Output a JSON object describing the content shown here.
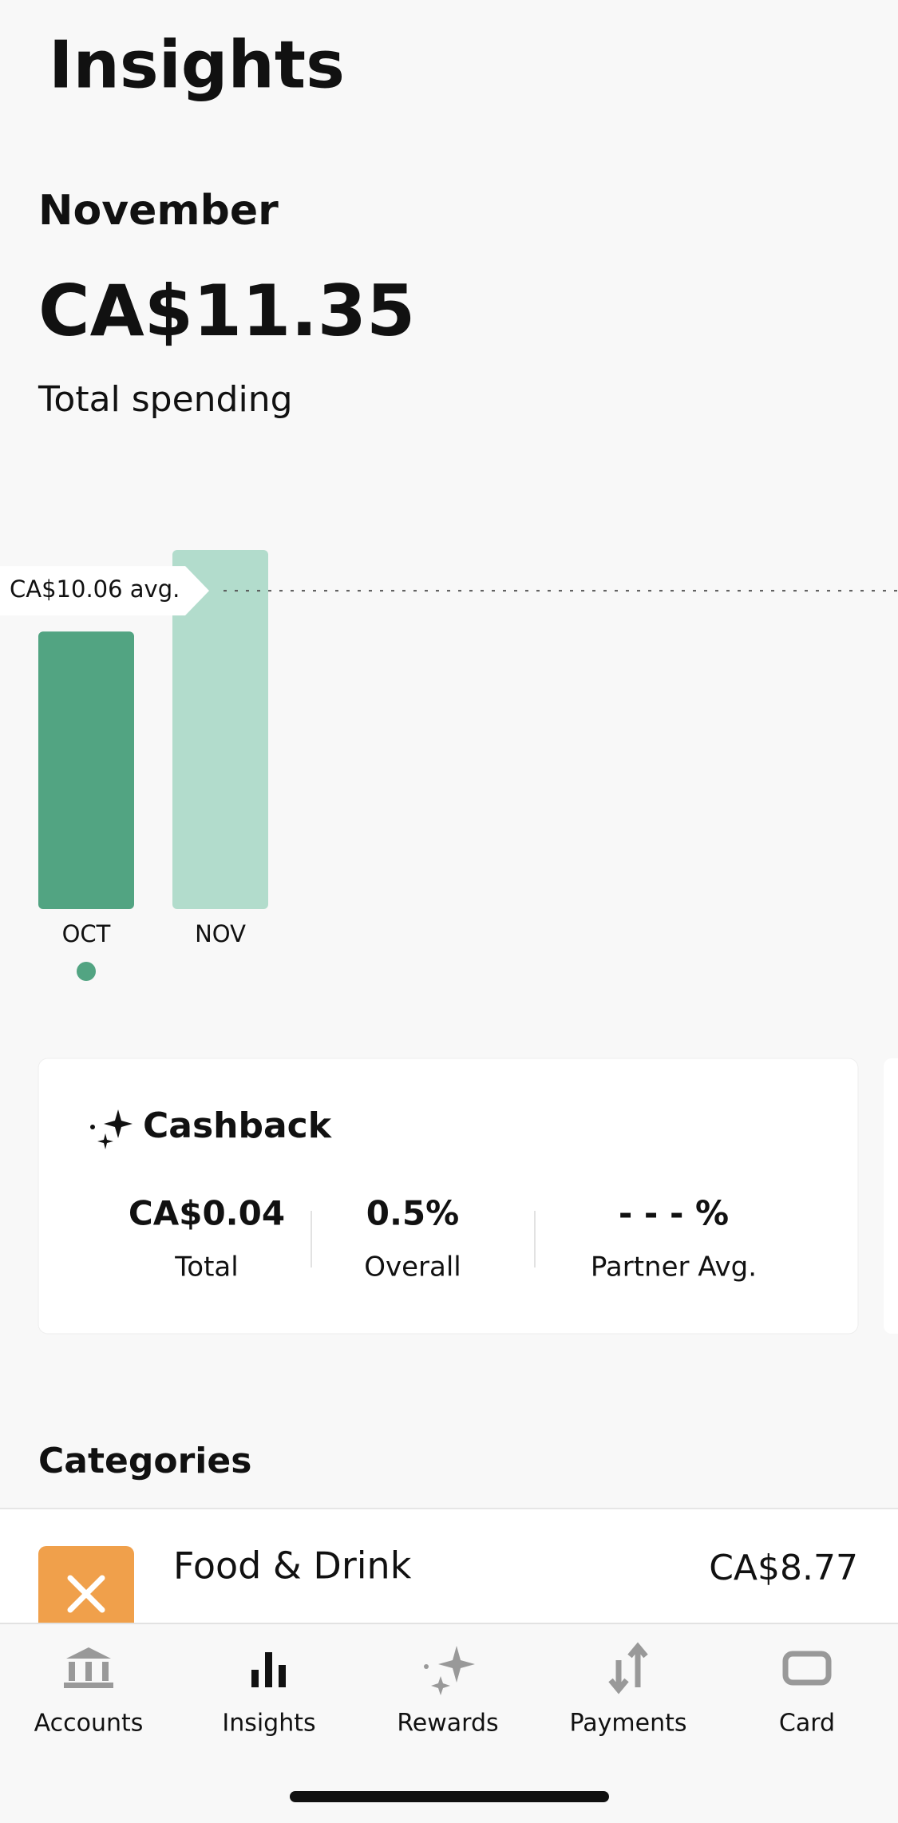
{
  "header": {
    "title": "Insights"
  },
  "summary": {
    "month": "November",
    "amount": "CA$11.35",
    "label": "Total spending"
  },
  "chart_data": {
    "type": "bar",
    "categories": [
      "OCT",
      "NOV"
    ],
    "values": [
      8.77,
      11.35
    ],
    "colors": [
      "#52a482",
      "#b2dccc"
    ],
    "average": {
      "value": 10.06,
      "label": "CA$10.06 avg."
    }
  },
  "cashback": {
    "title": "Cashback",
    "stats": [
      {
        "value": "CA$0.04",
        "label": "Total"
      },
      {
        "value": "0.5%",
        "label": "Overall"
      },
      {
        "value": "- - - %",
        "label": "Partner Avg."
      }
    ]
  },
  "categories_section": {
    "title": "Categories",
    "items": [
      {
        "name": "Food & Drink",
        "amount": "CA$8.77"
      }
    ]
  },
  "nav": [
    "Accounts",
    "Insights",
    "Rewards",
    "Payments",
    "Card"
  ]
}
